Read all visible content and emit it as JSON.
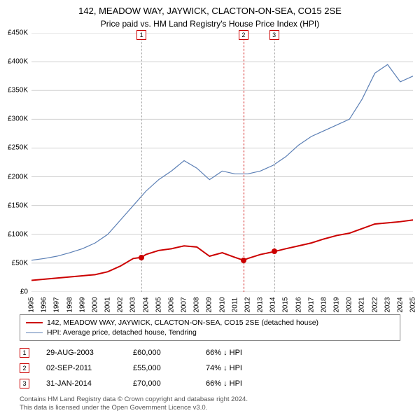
{
  "title": "142, MEADOW WAY, JAYWICK, CLACTON-ON-SEA, CO15 2SE",
  "subtitle": "Price paid vs. HM Land Registry's House Price Index (HPI)",
  "chart": {
    "type": "line",
    "background_color": "#ffffff",
    "grid_color": "#d0d0d0",
    "ylim": [
      0,
      450000
    ],
    "ytick_step": 50000,
    "y_labels": [
      "£0",
      "£50K",
      "£100K",
      "£150K",
      "£200K",
      "£250K",
      "£300K",
      "£350K",
      "£400K",
      "£450K"
    ],
    "x_years": [
      1995,
      1996,
      1997,
      1998,
      1999,
      2000,
      2001,
      2002,
      2003,
      2004,
      2005,
      2006,
      2007,
      2008,
      2009,
      2010,
      2011,
      2012,
      2013,
      2014,
      2015,
      2016,
      2017,
      2018,
      2019,
      2020,
      2021,
      2022,
      2023,
      2024,
      2025
    ],
    "series": [
      {
        "name": "property",
        "label": "142, MEADOW WAY, JAYWICK, CLACTON-ON-SEA, CO15 2SE (detached house)",
        "color": "#cc0000",
        "line_width": 2,
        "data": [
          [
            1995,
            20000
          ],
          [
            1996,
            22000
          ],
          [
            1997,
            24000
          ],
          [
            1998,
            26000
          ],
          [
            1999,
            28000
          ],
          [
            2000,
            30000
          ],
          [
            2001,
            35000
          ],
          [
            2002,
            45000
          ],
          [
            2003,
            58000
          ],
          [
            2003.65,
            60000
          ],
          [
            2004,
            65000
          ],
          [
            2005,
            72000
          ],
          [
            2006,
            75000
          ],
          [
            2007,
            80000
          ],
          [
            2008,
            78000
          ],
          [
            2009,
            62000
          ],
          [
            2010,
            68000
          ],
          [
            2011,
            60000
          ],
          [
            2011.67,
            55000
          ],
          [
            2012,
            58000
          ],
          [
            2013,
            65000
          ],
          [
            2014.08,
            70000
          ],
          [
            2015,
            75000
          ],
          [
            2016,
            80000
          ],
          [
            2017,
            85000
          ],
          [
            2018,
            92000
          ],
          [
            2019,
            98000
          ],
          [
            2020,
            102000
          ],
          [
            2021,
            110000
          ],
          [
            2022,
            118000
          ],
          [
            2023,
            120000
          ],
          [
            2024,
            122000
          ],
          [
            2025,
            125000
          ]
        ]
      },
      {
        "name": "hpi",
        "label": "HPI: Average price, detached house, Tendring",
        "color": "#5b7fb5",
        "line_width": 1.2,
        "data": [
          [
            1995,
            55000
          ],
          [
            1996,
            58000
          ],
          [
            1997,
            62000
          ],
          [
            1998,
            68000
          ],
          [
            1999,
            75000
          ],
          [
            2000,
            85000
          ],
          [
            2001,
            100000
          ],
          [
            2002,
            125000
          ],
          [
            2003,
            150000
          ],
          [
            2004,
            175000
          ],
          [
            2005,
            195000
          ],
          [
            2006,
            210000
          ],
          [
            2007,
            228000
          ],
          [
            2008,
            215000
          ],
          [
            2009,
            195000
          ],
          [
            2010,
            210000
          ],
          [
            2011,
            205000
          ],
          [
            2012,
            205000
          ],
          [
            2013,
            210000
          ],
          [
            2014,
            220000
          ],
          [
            2015,
            235000
          ],
          [
            2016,
            255000
          ],
          [
            2017,
            270000
          ],
          [
            2018,
            280000
          ],
          [
            2019,
            290000
          ],
          [
            2020,
            300000
          ],
          [
            2021,
            335000
          ],
          [
            2022,
            380000
          ],
          [
            2023,
            395000
          ],
          [
            2024,
            365000
          ],
          [
            2025,
            375000
          ]
        ]
      }
    ],
    "transaction_markers": [
      {
        "num": "1",
        "year": 2003.65,
        "price": 60000,
        "line_color": "#a0a0a0"
      },
      {
        "num": "2",
        "year": 2011.67,
        "price": 55000,
        "line_color": "#cc0000"
      },
      {
        "num": "3",
        "year": 2014.08,
        "price": 70000,
        "line_color": "#a0a0a0"
      }
    ]
  },
  "legend": {
    "items": [
      {
        "color": "#cc0000",
        "height": 2,
        "label": "142, MEADOW WAY, JAYWICK, CLACTON-ON-SEA, CO15 2SE (detached house)"
      },
      {
        "color": "#5b7fb5",
        "height": 1,
        "label": "HPI: Average price, detached house, Tendring"
      }
    ]
  },
  "transactions": [
    {
      "num": "1",
      "date": "29-AUG-2003",
      "price": "£60,000",
      "pct": "66% ↓ HPI"
    },
    {
      "num": "2",
      "date": "02-SEP-2011",
      "price": "£55,000",
      "pct": "74% ↓ HPI"
    },
    {
      "num": "3",
      "date": "31-JAN-2014",
      "price": "£70,000",
      "pct": "66% ↓ HPI"
    }
  ],
  "footer_line1": "Contains HM Land Registry data © Crown copyright and database right 2024.",
  "footer_line2": "This data is licensed under the Open Government Licence v3.0."
}
